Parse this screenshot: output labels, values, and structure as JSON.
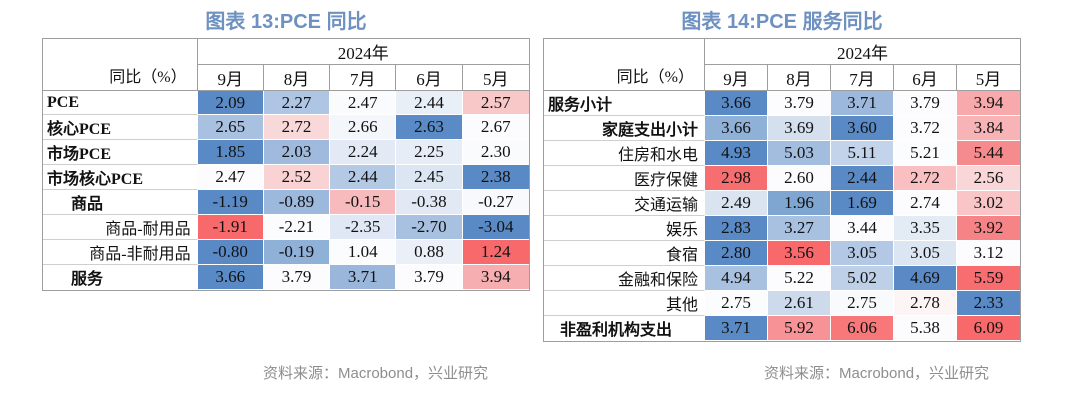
{
  "palette": {
    "title_blue": "#6e91c1",
    "caption_gray": "#8e8e8e",
    "scale_blue": "#5a8ac6",
    "scale_white": "#fcfcff",
    "scale_red": "#f8696b"
  },
  "chart_data": [
    {
      "type": "heatmap",
      "title": "图表 13:PCE 同比",
      "source": "资料来源：Macrobond，兴业研究",
      "year_header": "2024年",
      "corner_label": "同比（%）",
      "columns": [
        "9月",
        "8月",
        "7月",
        "6月",
        "5月"
      ],
      "rows": [
        {
          "label": "PCE",
          "bold": true,
          "align": "left",
          "indent": 4,
          "values": [
            2.09,
            2.27,
            2.47,
            2.44,
            2.57
          ],
          "colors": [
            "#5a8ac6",
            "#aec5e3",
            "#fafbfd",
            "#e9eff7",
            "#f8c7c8"
          ]
        },
        {
          "label": "核心PCE",
          "bold": true,
          "align": "left",
          "indent": 4,
          "values": [
            2.65,
            2.72,
            2.66,
            2.63,
            2.67
          ],
          "colors": [
            "#a9c1e0",
            "#f9d8d9",
            "#f3f6fa",
            "#5b8bc6",
            "#fcfcfe"
          ]
        },
        {
          "label": "市场PCE",
          "bold": true,
          "align": "left",
          "indent": 4,
          "values": [
            1.85,
            2.03,
            2.24,
            2.25,
            2.3
          ],
          "colors": [
            "#5a8ac6",
            "#9fbadd",
            "#e3eaf5",
            "#e7edf7",
            "#fafbfd"
          ]
        },
        {
          "label": "市场核心PCE",
          "bold": true,
          "align": "left",
          "indent": 4,
          "values": [
            2.47,
            2.52,
            2.44,
            2.45,
            2.38
          ],
          "colors": [
            "#fcfcfe",
            "#f9d3d4",
            "#b4c9e4",
            "#dce6f2",
            "#5a8ac6"
          ]
        },
        {
          "label": "商品",
          "bold": true,
          "align": "left",
          "indent": 28,
          "values": [
            -1.19,
            -0.89,
            -0.15,
            -0.38,
            -0.27
          ],
          "colors": [
            "#5a8ac6",
            "#9cb8dc",
            "#f8bbbd",
            "#e2e9f4",
            "#f7f9fc"
          ]
        },
        {
          "label": "商品-耐用品",
          "bold": false,
          "align": "right",
          "indent": 0,
          "values": [
            -1.91,
            -2.21,
            -2.35,
            -2.7,
            -3.04
          ],
          "colors": [
            "#f8696b",
            "#fbfcfe",
            "#dfe8f4",
            "#a9c1e0",
            "#5a8ac6"
          ]
        },
        {
          "label": "商品-非耐用品",
          "bold": false,
          "align": "right",
          "indent": 0,
          "values": [
            -0.8,
            -0.19,
            1.04,
            0.88,
            1.24
          ],
          "colors": [
            "#5a8ac6",
            "#8fb0d7",
            "#fbfcfe",
            "#ebf0f8",
            "#f8696b"
          ]
        },
        {
          "label": "服务",
          "bold": true,
          "align": "left",
          "indent": 28,
          "values": [
            3.66,
            3.79,
            3.71,
            3.79,
            3.94
          ],
          "colors": [
            "#5a8ac6",
            "#fcfcfe",
            "#9ab6db",
            "#fcfcfe",
            "#f7aeb0"
          ]
        }
      ]
    },
    {
      "type": "heatmap",
      "title": "图表 14:PCE 服务同比",
      "source": "资料来源：Macrobond，兴业研究",
      "year_header": "2024年",
      "corner_label": "同比（%）",
      "columns": [
        "9月",
        "8月",
        "7月",
        "6月",
        "5月"
      ],
      "rows": [
        {
          "label": "服务小计",
          "bold": true,
          "align": "left",
          "indent": 4,
          "values": [
            3.66,
            3.79,
            3.71,
            3.79,
            3.94
          ],
          "colors": [
            "#5a8ac6",
            "#fcfcfe",
            "#9cb8dc",
            "#fcfcfe",
            "#f7a9ab"
          ]
        },
        {
          "label": "家庭支出小计",
          "bold": true,
          "align": "right",
          "indent": 0,
          "values": [
            3.66,
            3.69,
            3.6,
            3.72,
            3.84
          ],
          "colors": [
            "#8fb1d8",
            "#d5e0ef",
            "#5a8ac6",
            "#fcfcfe",
            "#f7b3b5"
          ]
        },
        {
          "label": "住房和水电",
          "bold": false,
          "align": "right",
          "indent": 0,
          "values": [
            4.93,
            5.03,
            5.11,
            5.21,
            5.44
          ],
          "colors": [
            "#5a8ac6",
            "#a3bdde",
            "#c3d3e9",
            "#fbfcfe",
            "#f68b8e"
          ]
        },
        {
          "label": "医疗保健",
          "bold": false,
          "align": "right",
          "indent": 0,
          "values": [
            2.98,
            2.6,
            2.44,
            2.72,
            2.56
          ],
          "colors": [
            "#f76e71",
            "#fcfcfe",
            "#5a8ac6",
            "#f9bfc1",
            "#f9d6d7"
          ]
        },
        {
          "label": "交通运输",
          "bold": false,
          "align": "right",
          "indent": 0,
          "values": [
            2.49,
            1.96,
            1.69,
            2.74,
            3.02
          ],
          "colors": [
            "#dae4f1",
            "#7fa5d1",
            "#5a8ac6",
            "#fcfcfe",
            "#f9c5c6"
          ]
        },
        {
          "label": "娱乐",
          "bold": false,
          "align": "right",
          "indent": 0,
          "values": [
            2.83,
            3.27,
            3.44,
            3.35,
            3.92
          ],
          "colors": [
            "#5a8ac6",
            "#a9c1e0",
            "#fcfcfe",
            "#e3ebf5",
            "#f68487"
          ]
        },
        {
          "label": "食宿",
          "bold": false,
          "align": "right",
          "indent": 0,
          "values": [
            2.8,
            3.56,
            3.05,
            3.05,
            3.12
          ],
          "colors": [
            "#5a8ac6",
            "#f8696b",
            "#b3c8e4",
            "#dce6f2",
            "#fcfcfe"
          ]
        },
        {
          "label": "金融和保险",
          "bold": false,
          "align": "right",
          "indent": 0,
          "values": [
            4.94,
            5.22,
            5.02,
            4.69,
            5.59
          ],
          "colors": [
            "#a9c1e0",
            "#fcfcfe",
            "#bdd0e7",
            "#5a8ac6",
            "#f76d70"
          ]
        },
        {
          "label": "其他",
          "bold": false,
          "align": "right",
          "indent": 0,
          "values": [
            2.75,
            2.61,
            2.75,
            2.78,
            2.33
          ],
          "colors": [
            "#fbfcfe",
            "#ccdaeb",
            "#f8fafc",
            "#fdf5f5",
            "#5a8ac6"
          ]
        },
        {
          "label": "非盈利机构支出",
          "bold": true,
          "align": "left",
          "indent": 16,
          "values": [
            3.71,
            5.92,
            6.06,
            5.38,
            6.09
          ],
          "colors": [
            "#5a8ac6",
            "#f79396",
            "#f87779",
            "#fcfcfe",
            "#f8696b"
          ]
        }
      ]
    }
  ]
}
